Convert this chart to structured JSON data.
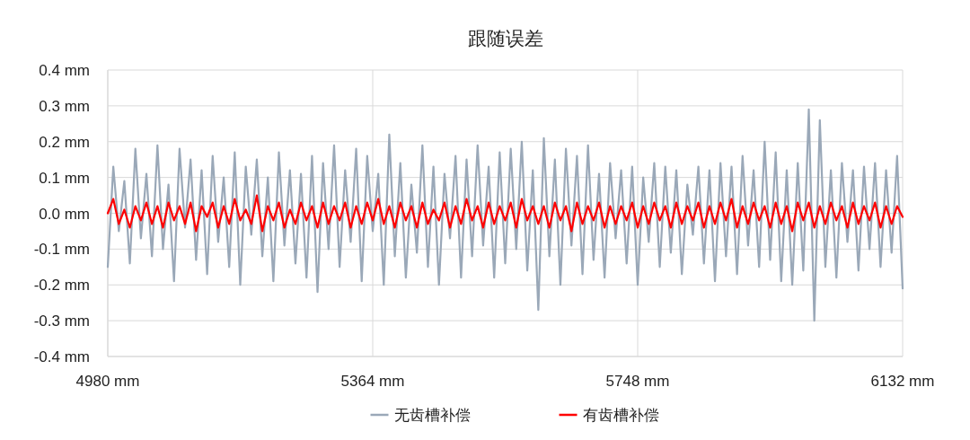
{
  "chart_data": {
    "type": "line",
    "title": "跟随误差",
    "xlim": [
      4980,
      6132
    ],
    "ylim": [
      -0.4,
      0.4
    ],
    "xticks": [
      {
        "value": 4980,
        "label": "4980 mm"
      },
      {
        "value": 5364,
        "label": "5364 mm"
      },
      {
        "value": 5748,
        "label": "5748 mm"
      },
      {
        "value": 6132,
        "label": "6132 mm"
      }
    ],
    "yticks": [
      {
        "value": -0.4,
        "label": "-0.4 mm"
      },
      {
        "value": -0.3,
        "label": "-0.3 mm"
      },
      {
        "value": -0.2,
        "label": "-0.2 mm"
      },
      {
        "value": -0.1,
        "label": "-0.1 mm"
      },
      {
        "value": 0,
        "label": "0.0 mm"
      },
      {
        "value": 0.1,
        "label": "0.1 mm"
      },
      {
        "value": 0.2,
        "label": "0.2 mm"
      },
      {
        "value": 0.3,
        "label": "0.3 mm"
      },
      {
        "value": 0.4,
        "label": "0.4 mm"
      }
    ],
    "grid": true,
    "legend": "bottom",
    "x": [
      4980,
      4988,
      4996,
      5004,
      5012,
      5020,
      5028,
      5036,
      5044,
      5052,
      5060,
      5068,
      5076,
      5084,
      5092,
      5100,
      5108,
      5116,
      5124,
      5132,
      5140,
      5148,
      5156,
      5164,
      5172,
      5180,
      5188,
      5196,
      5204,
      5212,
      5220,
      5228,
      5236,
      5244,
      5252,
      5260,
      5268,
      5276,
      5284,
      5292,
      5300,
      5308,
      5316,
      5324,
      5332,
      5340,
      5348,
      5356,
      5364,
      5372,
      5380,
      5388,
      5396,
      5404,
      5412,
      5420,
      5428,
      5436,
      5444,
      5452,
      5460,
      5468,
      5476,
      5484,
      5492,
      5500,
      5508,
      5516,
      5524,
      5532,
      5540,
      5548,
      5556,
      5564,
      5572,
      5580,
      5588,
      5596,
      5604,
      5612,
      5620,
      5628,
      5636,
      5644,
      5652,
      5660,
      5668,
      5676,
      5684,
      5692,
      5700,
      5708,
      5716,
      5724,
      5732,
      5740,
      5748,
      5756,
      5764,
      5772,
      5780,
      5788,
      5796,
      5804,
      5812,
      5820,
      5828,
      5836,
      5844,
      5852,
      5860,
      5868,
      5876,
      5884,
      5892,
      5900,
      5908,
      5916,
      5924,
      5932,
      5940,
      5948,
      5956,
      5964,
      5972,
      5980,
      5988,
      5996,
      6004,
      6012,
      6020,
      6028,
      6036,
      6044,
      6052,
      6060,
      6068,
      6076,
      6084,
      6092,
      6100,
      6108,
      6116,
      6124,
      6132
    ],
    "series": [
      {
        "name": "无齿槽补偿",
        "color": "#9aa8b8",
        "values": [
          -0.15,
          0.13,
          -0.05,
          0.09,
          -0.14,
          0.18,
          -0.07,
          0.11,
          -0.12,
          0.19,
          -0.1,
          0.08,
          -0.19,
          0.18,
          -0.04,
          0.15,
          -0.13,
          0.12,
          -0.17,
          0.16,
          -0.08,
          0.1,
          -0.15,
          0.17,
          -0.2,
          0.13,
          -0.06,
          0.15,
          -0.12,
          0.1,
          -0.19,
          0.17,
          -0.09,
          0.12,
          -0.14,
          0.11,
          -0.18,
          0.16,
          -0.22,
          0.14,
          -0.1,
          0.19,
          -0.15,
          0.12,
          -0.08,
          0.18,
          -0.19,
          0.16,
          -0.05,
          0.11,
          -0.2,
          0.22,
          -0.12,
          0.14,
          -0.18,
          0.08,
          -0.11,
          0.19,
          -0.15,
          0.13,
          -0.2,
          0.11,
          -0.07,
          0.16,
          -0.18,
          0.15,
          -0.12,
          0.19,
          -0.09,
          0.13,
          -0.18,
          0.17,
          -0.14,
          0.18,
          -0.1,
          0.2,
          -0.16,
          0.12,
          -0.27,
          0.21,
          -0.12,
          0.15,
          -0.2,
          0.18,
          -0.09,
          0.16,
          -0.17,
          0.19,
          -0.13,
          0.11,
          -0.18,
          0.14,
          -0.07,
          0.12,
          -0.14,
          0.13,
          -0.2,
          0.1,
          -0.08,
          0.14,
          -0.15,
          0.13,
          -0.11,
          0.12,
          -0.17,
          0.08,
          -0.06,
          0.13,
          -0.14,
          0.12,
          -0.19,
          0.14,
          -0.12,
          0.13,
          -0.17,
          0.16,
          -0.09,
          0.12,
          -0.15,
          0.2,
          -0.13,
          0.17,
          -0.19,
          0.12,
          -0.2,
          0.14,
          -0.16,
          0.29,
          -0.3,
          0.26,
          -0.15,
          0.12,
          -0.18,
          0.14,
          -0.08,
          0.12,
          -0.16,
          0.13,
          -0.1,
          0.14,
          -0.15,
          0.12,
          -0.11,
          0.16,
          -0.21
        ]
      },
      {
        "name": "有齿槽补偿",
        "color": "#ff0000",
        "values": [
          0.0,
          0.04,
          -0.03,
          0.01,
          -0.04,
          0.02,
          -0.02,
          0.03,
          -0.03,
          0.02,
          -0.04,
          0.03,
          -0.02,
          0.02,
          -0.03,
          0.03,
          -0.05,
          0.02,
          -0.01,
          0.03,
          -0.04,
          0.02,
          -0.03,
          0.04,
          -0.02,
          0.01,
          -0.03,
          0.05,
          -0.05,
          0.02,
          -0.02,
          0.03,
          -0.04,
          0.01,
          -0.03,
          0.03,
          -0.02,
          0.02,
          -0.04,
          0.03,
          -0.03,
          0.02,
          -0.02,
          0.03,
          -0.04,
          0.02,
          -0.03,
          0.03,
          -0.02,
          0.04,
          -0.03,
          0.02,
          -0.04,
          0.03,
          -0.02,
          0.02,
          -0.04,
          0.03,
          -0.03,
          0.01,
          -0.02,
          0.03,
          -0.04,
          0.02,
          -0.03,
          0.04,
          -0.02,
          0.02,
          -0.04,
          0.03,
          -0.03,
          0.02,
          -0.02,
          0.03,
          -0.04,
          0.04,
          -0.02,
          0.02,
          -0.03,
          0.02,
          -0.04,
          0.03,
          -0.02,
          0.02,
          -0.05,
          0.03,
          -0.03,
          0.02,
          -0.02,
          0.03,
          -0.04,
          0.02,
          -0.03,
          0.02,
          -0.02,
          0.03,
          -0.04,
          0.02,
          -0.03,
          0.03,
          -0.02,
          0.02,
          -0.04,
          0.03,
          -0.03,
          0.02,
          -0.02,
          0.03,
          -0.04,
          0.02,
          -0.03,
          0.03,
          -0.02,
          0.04,
          -0.04,
          0.02,
          -0.03,
          0.03,
          -0.02,
          0.02,
          -0.04,
          0.03,
          -0.03,
          0.02,
          -0.05,
          0.03,
          -0.02,
          0.03,
          -0.04,
          0.02,
          -0.03,
          0.03,
          -0.02,
          0.02,
          -0.04,
          0.03,
          -0.03,
          0.02,
          -0.02,
          0.03,
          -0.04,
          0.02,
          -0.03,
          0.02,
          -0.01
        ]
      }
    ]
  }
}
